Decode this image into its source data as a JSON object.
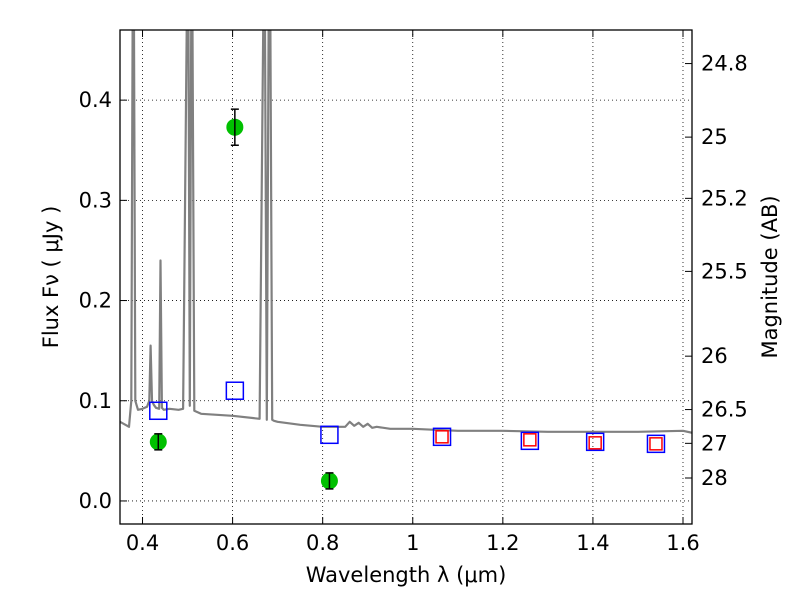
{
  "chart_data": {
    "type": "scatter",
    "title": "",
    "xlabel": "Wavelength  λ (μm)",
    "ylabel": "Flux  Fν  ( μJy )",
    "ylabel_right": "Magnitude (AB)",
    "xlim": [
      0.35,
      1.62
    ],
    "ylim": [
      -0.023,
      0.47
    ],
    "x_ticks": [
      0.4,
      0.6,
      0.8,
      1.0,
      1.2,
      1.4,
      1.6
    ],
    "x_tick_labels": [
      "0.4",
      "0.6",
      "0.8",
      "1",
      "1.2",
      "1.4",
      "1.6"
    ],
    "y_ticks": [
      0.0,
      0.1,
      0.2,
      0.3,
      0.4
    ],
    "y_tick_labels": [
      "0.0",
      "0.1",
      "0.2",
      "0.3",
      "0.4"
    ],
    "right_ticks": [
      {
        "flux": 0.4365,
        "label": "24.8"
      },
      {
        "flux": 0.3631,
        "label": "25"
      },
      {
        "flux": 0.302,
        "label": "25.2"
      },
      {
        "flux": 0.2291,
        "label": "25.5"
      },
      {
        "flux": 0.1445,
        "label": "26"
      },
      {
        "flux": 0.0912,
        "label": "26.5"
      },
      {
        "flux": 0.0575,
        "label": "27"
      },
      {
        "flux": 0.0229,
        "label": "28"
      }
    ],
    "grid": true,
    "series": [
      {
        "kind": "line",
        "color": "#808080",
        "x": [
          0.35,
          0.37,
          0.375,
          0.378,
          0.381,
          0.384,
          0.39,
          0.4,
          0.41,
          0.415,
          0.418,
          0.421,
          0.425,
          0.43,
          0.437,
          0.44,
          0.443,
          0.447,
          0.46,
          0.48,
          0.49,
          0.498,
          0.502,
          0.505,
          0.508,
          0.511,
          0.515,
          0.53,
          0.6,
          0.66,
          0.668,
          0.672,
          0.676,
          0.68,
          0.684,
          0.688,
          0.692,
          0.7,
          0.75,
          0.8,
          0.85,
          0.86,
          0.87,
          0.88,
          0.89,
          0.9,
          0.91,
          0.92,
          0.95,
          1.0,
          1.1,
          1.2,
          1.3,
          1.4,
          1.5,
          1.6,
          1.62
        ],
        "y": [
          0.079,
          0.074,
          0.1,
          0.47,
          0.47,
          0.1,
          0.091,
          0.092,
          0.094,
          0.1,
          0.155,
          0.1,
          0.096,
          0.093,
          0.092,
          0.24,
          0.093,
          0.091,
          0.092,
          0.091,
          0.092,
          0.47,
          0.47,
          0.095,
          0.47,
          0.47,
          0.09,
          0.087,
          0.085,
          0.082,
          0.47,
          0.47,
          0.081,
          0.47,
          0.47,
          0.081,
          0.08,
          0.079,
          0.076,
          0.074,
          0.074,
          0.079,
          0.075,
          0.078,
          0.074,
          0.077,
          0.073,
          0.074,
          0.072,
          0.072,
          0.07,
          0.07,
          0.069,
          0.069,
          0.069,
          0.07,
          0.068
        ]
      },
      {
        "kind": "points_with_error",
        "color": "#00c000",
        "x": [
          0.435,
          0.605,
          0.815
        ],
        "y": [
          0.059,
          0.373,
          0.02
        ],
        "yerr": [
          0.008,
          0.018,
          0.008
        ]
      },
      {
        "kind": "open_squares",
        "color": "#0000ff",
        "x": [
          0.435,
          0.605,
          0.815,
          1.065,
          1.26,
          1.405,
          1.54
        ],
        "y": [
          0.09,
          0.11,
          0.066,
          0.064,
          0.06,
          0.059,
          0.057
        ]
      },
      {
        "kind": "open_squares",
        "color": "#ff0000",
        "x": [
          1.065,
          1.26,
          1.405,
          1.54
        ],
        "y": [
          0.064,
          0.061,
          0.058,
          0.057
        ]
      }
    ]
  }
}
